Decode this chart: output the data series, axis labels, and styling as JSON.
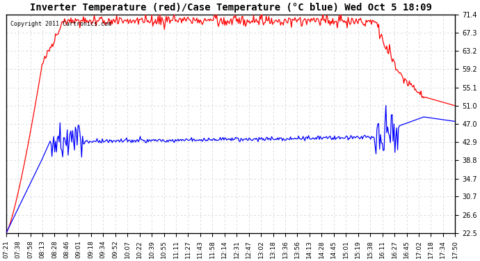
{
  "title": "Inverter Temperature (red)/Case Temperature (°C blue) Wed Oct 5 18:09",
  "copyright": "Copyright 2011 Cartronics.com",
  "background_color": "#ffffff",
  "plot_background": "#ffffff",
  "grid_color": "#cccccc",
  "red_color": "#ff0000",
  "blue_color": "#0000ff",
  "y_min": 22.5,
  "y_max": 71.4,
  "y_ticks": [
    22.5,
    26.6,
    30.7,
    34.7,
    38.8,
    42.9,
    47.0,
    51.0,
    55.1,
    59.2,
    63.2,
    67.3,
    71.4
  ],
  "x_labels": [
    "07:21",
    "07:38",
    "07:58",
    "08:13",
    "08:28",
    "08:46",
    "09:01",
    "09:18",
    "09:34",
    "09:52",
    "10:07",
    "10:22",
    "10:39",
    "10:55",
    "11:11",
    "11:27",
    "11:43",
    "11:58",
    "12:14",
    "12:31",
    "12:47",
    "13:02",
    "13:18",
    "13:36",
    "13:56",
    "14:13",
    "14:28",
    "14:45",
    "15:01",
    "15:19",
    "15:38",
    "16:11",
    "16:27",
    "16:45",
    "17:02",
    "17:18",
    "17:34",
    "17:50"
  ]
}
